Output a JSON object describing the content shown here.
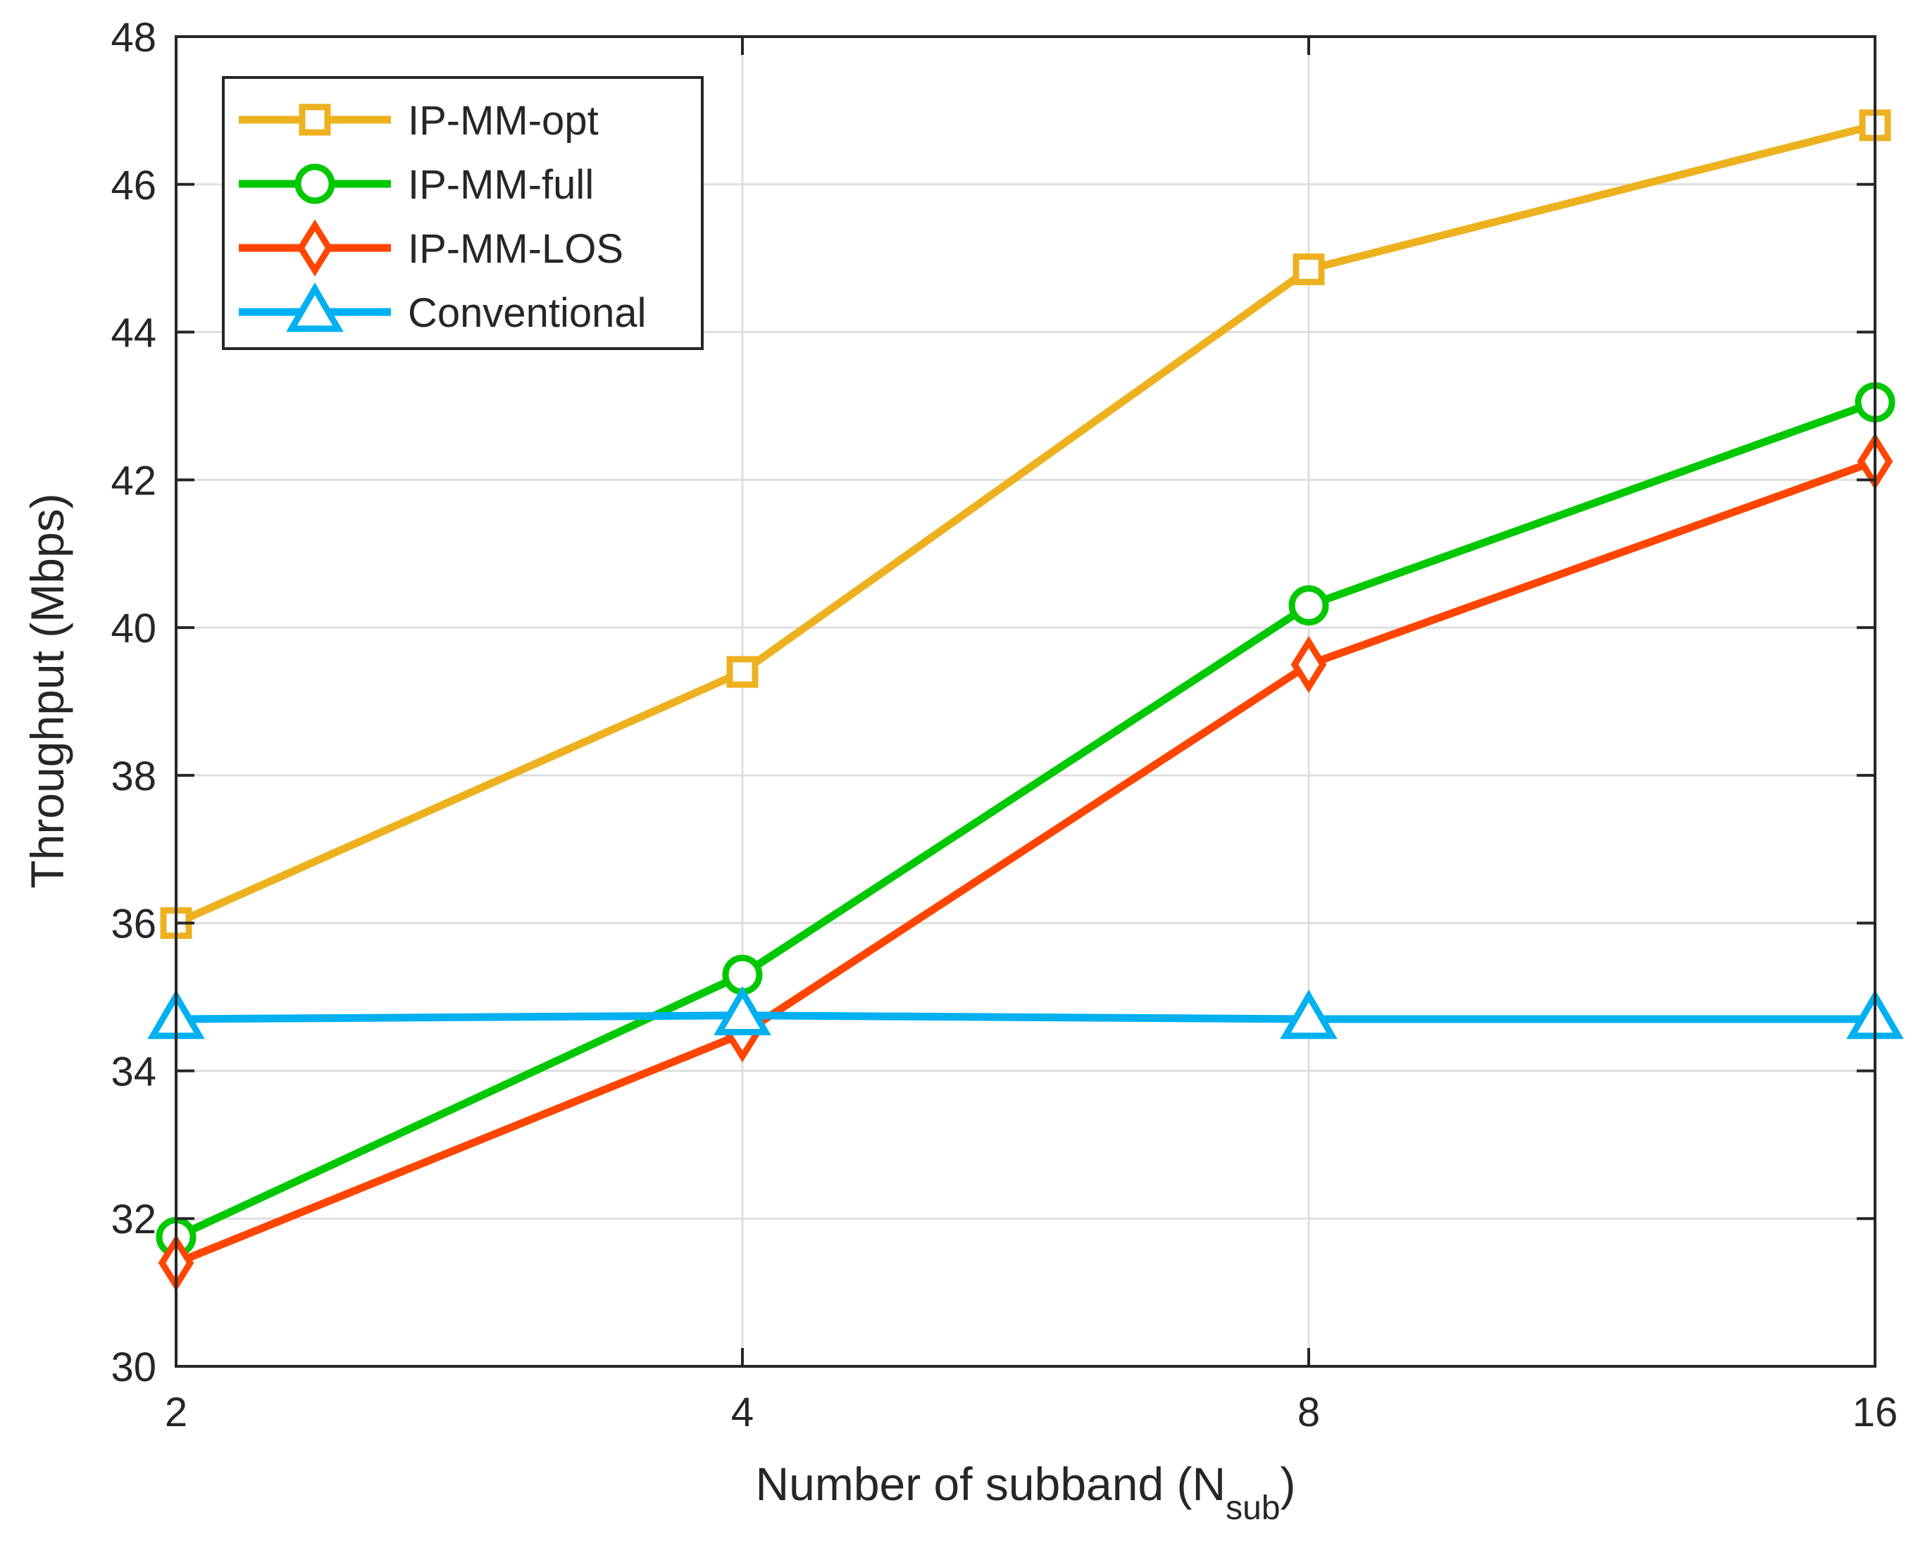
{
  "chart_data": {
    "type": "line",
    "title": "",
    "xlabel": "Number of subband (N",
    "xlabel_sub": "sub",
    "xlabel_close": ")",
    "ylabel": "Throughput (Mbps)",
    "x_scale": "log2",
    "x": [
      2,
      4,
      8,
      16
    ],
    "xticks": [
      "2",
      "4",
      "8",
      "16"
    ],
    "ylim": [
      30,
      48
    ],
    "yticks": [
      "30",
      "32",
      "34",
      "36",
      "38",
      "40",
      "42",
      "44",
      "46",
      "48"
    ],
    "grid": true,
    "legend_position": "top-left",
    "series": [
      {
        "name": "IP-MM-opt",
        "color": "#EDB120",
        "marker": "square",
        "values": [
          36.0,
          39.4,
          44.85,
          46.8
        ]
      },
      {
        "name": "IP-MM-full",
        "color": "#00C800",
        "marker": "circle",
        "values": [
          31.75,
          35.3,
          40.3,
          43.05
        ]
      },
      {
        "name": "IP-MM-LOS",
        "color": "#FF4500",
        "marker": "diamond",
        "values": [
          31.4,
          34.5,
          39.5,
          42.25
        ]
      },
      {
        "name": "Conventional",
        "color": "#00B0F0",
        "marker": "triangle",
        "values": [
          34.7,
          34.75,
          34.7,
          34.7
        ]
      }
    ]
  }
}
